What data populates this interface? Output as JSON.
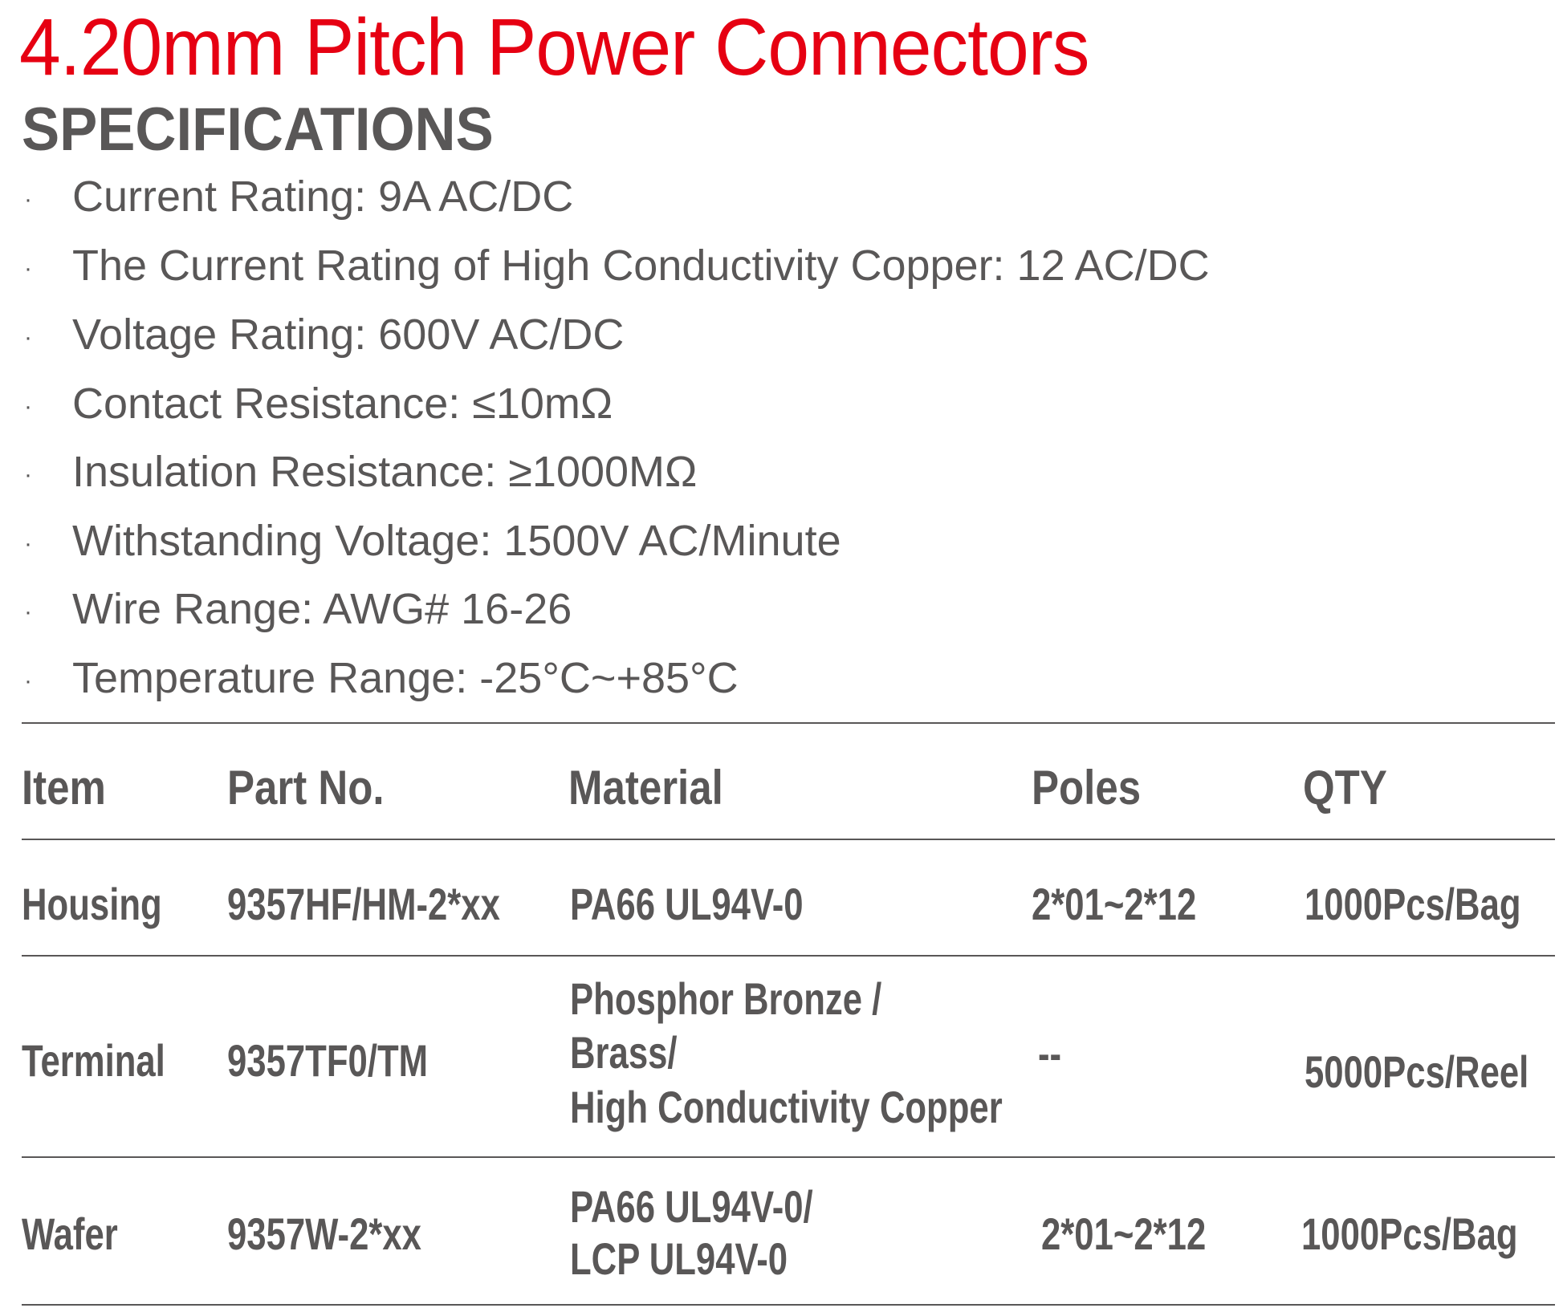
{
  "title": "4.20mm  Pitch Power Connectors",
  "specifications_heading": "SPECIFICATIONS",
  "bullet": "·",
  "specifications": [
    "Current Rating: 9A AC/DC",
    "The Current Rating of High Conductivity Copper: 12 AC/DC",
    "Voltage Rating: 600V AC/DC",
    "Contact Resistance: ≤10mΩ",
    "Insulation Resistance: ≥1000MΩ",
    "Withstanding Voltage: 1500V AC/Minute",
    "Wire Range: AWG# 16-26",
    "Temperature Range: -25°C~+85°C"
  ],
  "table": {
    "headers": [
      "Item",
      "Part No.",
      "Material",
      "Poles",
      "QTY"
    ],
    "rows": [
      {
        "item": "Housing",
        "part_no": "9357HF/HM-2*xx",
        "material": [
          "PA66 UL94V-0"
        ],
        "poles": "2*01~2*12",
        "qty": "1000Pcs/Bag"
      },
      {
        "item": "Terminal",
        "part_no": "9357TF0/TM",
        "material": [
          "Phosphor Bronze /",
          "Brass/",
          "High Conductivity Copper"
        ],
        "poles": "--",
        "qty": "5000Pcs/Reel"
      },
      {
        "item": "Wafer",
        "part_no": "9357W-2*xx",
        "material": [
          "PA66 UL94V-0/",
          "LCP UL94V-0"
        ],
        "poles": "2*01~2*12",
        "qty": "1000Pcs/Bag"
      }
    ]
  },
  "colors": {
    "title": "#e60012",
    "text": "#595757"
  }
}
